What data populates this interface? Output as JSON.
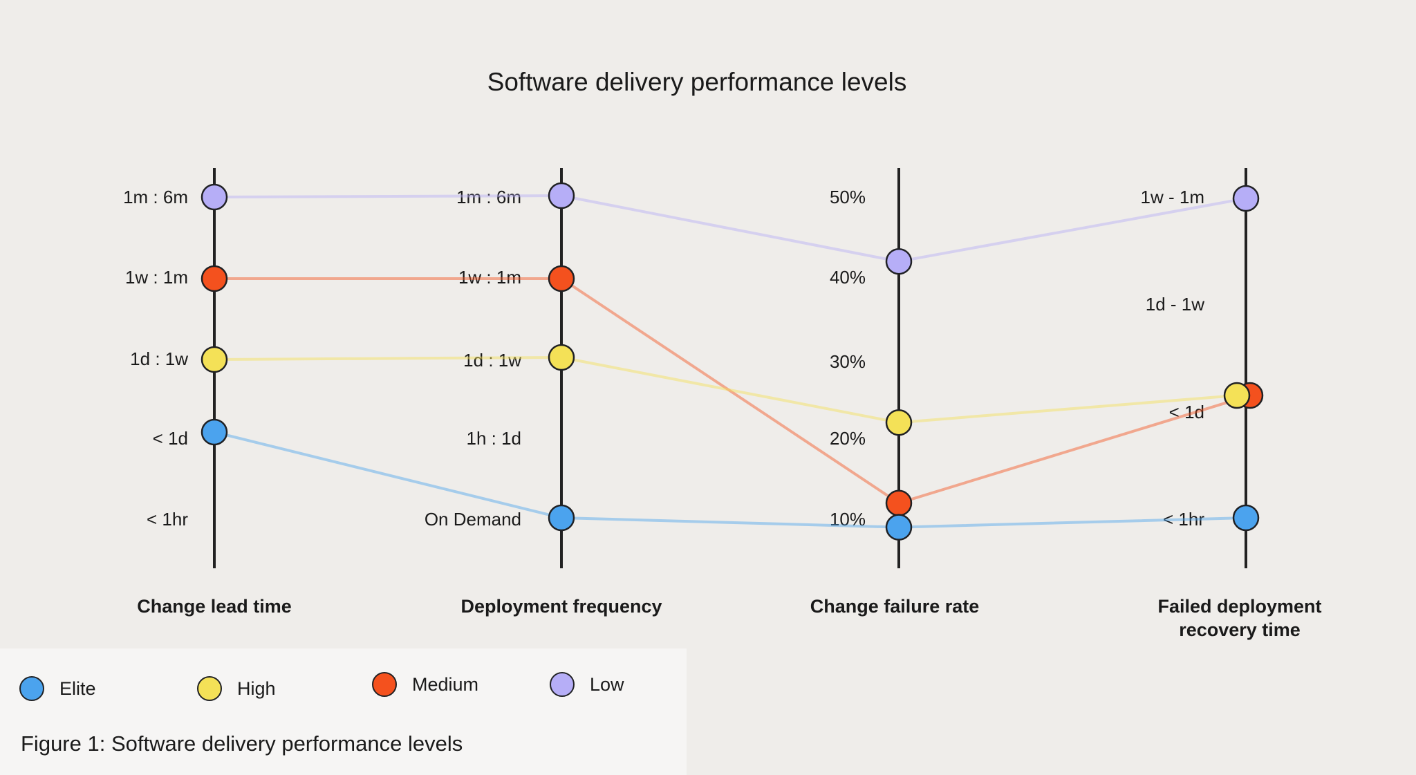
{
  "colors": {
    "Elite": "#4ba3ee",
    "High": "#f4e157",
    "Medium": "#f4511e",
    "Low": "#b6aef7"
  },
  "legend": [
    {
      "name": "Elite",
      "label": "Elite"
    },
    {
      "name": "High",
      "label": "High"
    },
    {
      "name": "Medium",
      "label": "Medium"
    },
    {
      "name": "Low",
      "label": "Low"
    }
  ],
  "caption": "Figure 1: Software delivery performance levels",
  "chart_data": {
    "type": "line",
    "title": "Software delivery performance levels",
    "axes": [
      {
        "name": "Change lead time",
        "ticks": [
          "1m : 6m",
          "1w : 1m",
          "1d : 1w",
          "< 1d",
          "< 1hr"
        ]
      },
      {
        "name": "Deployment frequency",
        "ticks": [
          "1m : 6m",
          "1w : 1m",
          "1d : 1w",
          "1h : 1d",
          "On Demand"
        ]
      },
      {
        "name": "Change failure rate",
        "ticks": [
          "50%",
          "40%",
          "30%",
          "20%",
          "10%"
        ],
        "tick_values": [
          50,
          40,
          30,
          20,
          10
        ]
      },
      {
        "name": "Failed deployment recovery time",
        "ticks": [
          "1w - 1m",
          "1d - 1w",
          "< 1d",
          "< 1hr"
        ]
      }
    ],
    "series": [
      {
        "name": "Low",
        "values": [
          "1m : 6m",
          "1m : 6m",
          42,
          "1w - 1m"
        ]
      },
      {
        "name": "Medium",
        "values": [
          "1w : 1m",
          "1w : 1m",
          12,
          "< 1d"
        ]
      },
      {
        "name": "High",
        "values": [
          "1d : 1w",
          "1d : 1w",
          22,
          "< 1d"
        ]
      },
      {
        "name": "Elite",
        "values": [
          "< 1d",
          "On Demand",
          9,
          "< 1hr"
        ]
      }
    ]
  }
}
